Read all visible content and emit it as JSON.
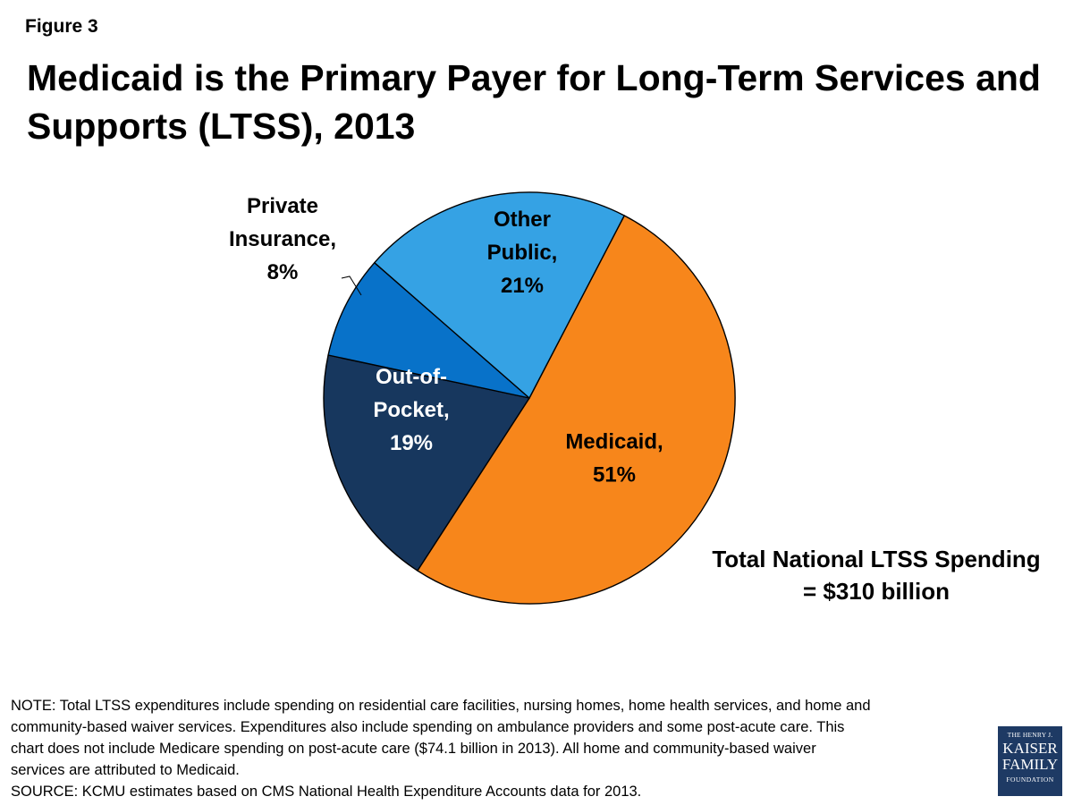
{
  "figure_label": "Figure 3",
  "title_lines": [
    "Medicaid is the Primary Payer for Long-Term Services and",
    "Supports (LTSS), 2013"
  ],
  "total_lines": [
    "Total National LTSS Spending",
    "= $310 billion"
  ],
  "note_lines": [
    "NOTE: Total LTSS expenditures include spending on residential care facilities, nursing homes, home health services, and home and",
    "community-based waiver services. Expenditures also include spending on ambulance providers and some post-acute care. This",
    "chart does not include Medicare spending on post-acute care ($74.1 billion in 2013). All home and community-based waiver",
    "services are attributed to Medicaid.",
    "SOURCE: KCMU estimates based on CMS National Health Expenditure Accounts data for 2013."
  ],
  "logo": {
    "line1": "THE HENRY J.",
    "line2": "KAISER",
    "line3": "FAMILY",
    "line4": "FOUNDATION"
  },
  "chart_data": {
    "type": "pie",
    "title": "Medicaid is the Primary Payer for Long-Term Services and Supports (LTSS), 2013",
    "slices": [
      {
        "label_lines": [
          "Medicaid,",
          "51%"
        ],
        "category": "Medicaid",
        "value": 51,
        "color": "#f7861b"
      },
      {
        "label_lines": [
          "Out-of-",
          "Pocket,",
          "19%"
        ],
        "category": "Out-of-Pocket",
        "value": 19,
        "color": "#17375e"
      },
      {
        "label_lines": [
          "Private",
          "Insurance,",
          "8%"
        ],
        "category": "Private Insurance",
        "value": 8,
        "color": "#0872c9"
      },
      {
        "label_lines": [
          "Other",
          "Public,",
          "21%"
        ],
        "category": "Other Public",
        "value": 21,
        "color": "#35a2e4"
      }
    ],
    "legend": "none"
  }
}
